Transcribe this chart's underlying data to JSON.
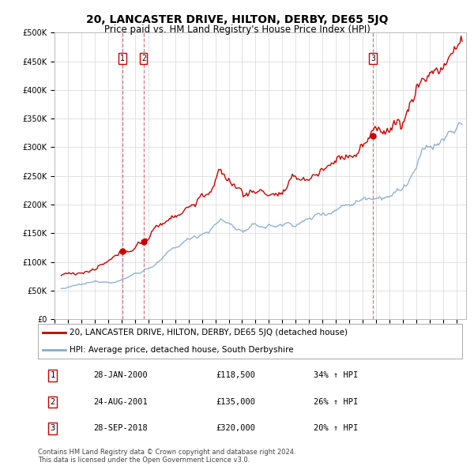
{
  "title": "20, LANCASTER DRIVE, HILTON, DERBY, DE65 5JQ",
  "subtitle": "Price paid vs. HM Land Registry's House Price Index (HPI)",
  "ylabel_ticks": [
    "£0",
    "£50K",
    "£100K",
    "£150K",
    "£200K",
    "£250K",
    "£300K",
    "£350K",
    "£400K",
    "£450K",
    "£500K"
  ],
  "ylim": [
    0,
    500000
  ],
  "xlim_start": 1995.3,
  "xlim_end": 2025.7,
  "sale_dates": [
    2000.07,
    2001.65,
    2018.75
  ],
  "sale_prices": [
    118500,
    135000,
    320000
  ],
  "sale_labels": [
    "1",
    "2",
    "3"
  ],
  "legend_red": "20, LANCASTER DRIVE, HILTON, DERBY, DE65 5JQ (detached house)",
  "legend_blue": "HPI: Average price, detached house, South Derbyshire",
  "table_data": [
    [
      "1",
      "28-JAN-2000",
      "£118,500",
      "34% ↑ HPI"
    ],
    [
      "2",
      "24-AUG-2001",
      "£135,000",
      "26% ↑ HPI"
    ],
    [
      "3",
      "28-SEP-2018",
      "£320,000",
      "20% ↑ HPI"
    ]
  ],
  "footer": "Contains HM Land Registry data © Crown copyright and database right 2024.\nThis data is licensed under the Open Government Licence v3.0.",
  "red_color": "#cc0000",
  "blue_color": "#88aacc",
  "vline_color": "#cc6666",
  "bg_color": "#ffffff",
  "grid_color": "#dddddd",
  "title_fontsize": 10,
  "subtitle_fontsize": 8.5,
  "tick_fontsize": 7,
  "legend_fontsize": 7.5,
  "table_fontsize": 7.5
}
